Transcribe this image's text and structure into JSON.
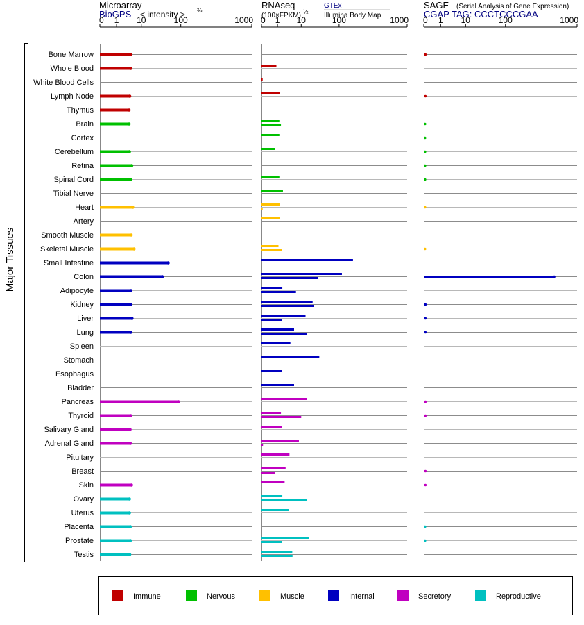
{
  "colors": {
    "Immune": "#c00000",
    "Nervous": "#00c000",
    "Muscle": "#ffc000",
    "Internal": "#0000c0",
    "Secretory": "#c000c0",
    "Reproductive": "#00c0c0"
  },
  "chart_data": {
    "type": "bar",
    "ylabel": "Major Tissues",
    "tissues": [
      {
        "name": "Bone Marrow",
        "system": "Immune"
      },
      {
        "name": "Whole Blood",
        "system": "Immune"
      },
      {
        "name": "White Blood Cells",
        "system": "Immune"
      },
      {
        "name": "Lymph Node",
        "system": "Immune"
      },
      {
        "name": "Thymus",
        "system": "Immune"
      },
      {
        "name": "Brain",
        "system": "Nervous"
      },
      {
        "name": "Cortex",
        "system": "Nervous"
      },
      {
        "name": "Cerebellum",
        "system": "Nervous"
      },
      {
        "name": "Retina",
        "system": "Nervous"
      },
      {
        "name": "Spinal Cord",
        "system": "Nervous"
      },
      {
        "name": "Tibial Nerve",
        "system": "Nervous"
      },
      {
        "name": "Heart",
        "system": "Muscle"
      },
      {
        "name": "Artery",
        "system": "Muscle"
      },
      {
        "name": "Smooth Muscle",
        "system": "Muscle"
      },
      {
        "name": "Skeletal Muscle",
        "system": "Muscle"
      },
      {
        "name": "Small Intestine",
        "system": "Internal"
      },
      {
        "name": "Colon",
        "system": "Internal"
      },
      {
        "name": "Adipocyte",
        "system": "Internal"
      },
      {
        "name": "Kidney",
        "system": "Internal"
      },
      {
        "name": "Liver",
        "system": "Internal"
      },
      {
        "name": "Lung",
        "system": "Internal"
      },
      {
        "name": "Spleen",
        "system": "Internal"
      },
      {
        "name": "Stomach",
        "system": "Internal"
      },
      {
        "name": "Esophagus",
        "system": "Internal"
      },
      {
        "name": "Bladder",
        "system": "Internal"
      },
      {
        "name": "Pancreas",
        "system": "Secretory"
      },
      {
        "name": "Thyroid",
        "system": "Secretory"
      },
      {
        "name": "Salivary Gland",
        "system": "Secretory"
      },
      {
        "name": "Adrenal Gland",
        "system": "Secretory"
      },
      {
        "name": "Pituitary",
        "system": "Secretory"
      },
      {
        "name": "Breast",
        "system": "Secretory"
      },
      {
        "name": "Skin",
        "system": "Secretory"
      },
      {
        "name": "Ovary",
        "system": "Reproductive"
      },
      {
        "name": "Uterus",
        "system": "Reproductive"
      },
      {
        "name": "Placenta",
        "system": "Reproductive"
      },
      {
        "name": "Prostate",
        "system": "Reproductive"
      },
      {
        "name": "Testis",
        "system": "Reproductive"
      }
    ],
    "panels": [
      {
        "id": "microarray",
        "title": "Microarray",
        "source": "BioGPS",
        "unit_label": "< intensity >",
        "exponent": "⅔",
        "tick_labels": [
          "0",
          "1",
          "10",
          "100",
          "1000"
        ],
        "tick_values": [
          0,
          1,
          10,
          100,
          1000
        ],
        "xlim": [
          0,
          1000
        ],
        "series": [
          {
            "name": "BioGPS",
            "values": [
              3.7,
              3.7,
              null,
              3.4,
              3.2,
              3.2,
              null,
              3.3,
              4.1,
              3.8,
              null,
              4.5,
              null,
              3.9,
              5.1,
              48,
              34,
              3.8,
              3.7,
              4.2,
              3.7,
              null,
              null,
              null,
              null,
              87,
              3.7,
              3.5,
              3.6,
              null,
              null,
              4.0,
              3.3,
              3.3,
              3.6,
              3.6,
              3.4
            ]
          }
        ]
      },
      {
        "id": "rnaseq",
        "title": "RNAseq",
        "unit_label": "(100×FPKM)",
        "exponent": "½",
        "sources": [
          "GTEx",
          "Illumina Body Map"
        ],
        "tick_labels": [
          "0",
          "1",
          "10",
          "100",
          "1000"
        ],
        "tick_values": [
          0,
          1,
          10,
          100,
          1000
        ],
        "xlim": [
          0,
          1000
        ],
        "series": [
          {
            "name": "GTEx",
            "values": [
              null,
              0.9,
              0.02,
              1.3,
              null,
              1.2,
              1.2,
              0.8,
              null,
              1.2,
              1.7,
              1.3,
              1.3,
              null,
              1.1,
              160,
              110,
              1.6,
              20,
              13,
              5,
              3.5,
              30,
              1.5,
              5,
              14,
              1.4,
              1.5,
              8,
              3.2,
              2.2,
              2.0,
              1.6,
              3.1,
              null,
              16,
              4.2
            ]
          },
          {
            "name": "Illumina Body Map",
            "values": [
              null,
              null,
              null,
              null,
              null,
              1.4,
              null,
              null,
              null,
              null,
              null,
              0.02,
              null,
              null,
              1.5,
              null,
              28,
              6,
              22,
              1.5,
              14,
              null,
              null,
              null,
              null,
              null,
              10,
              null,
              0.03,
              null,
              0.8,
              null,
              14,
              null,
              null,
              1.5,
              4.3
            ]
          }
        ]
      },
      {
        "id": "sage",
        "title": "SAGE",
        "subtitle": "(Serial Analysis of Gene Expression)",
        "source": "CGAP TAG: CCCTCCCGAA",
        "tick_labels": [
          "0",
          "1",
          "10",
          "100",
          "1000"
        ],
        "tick_values": [
          0,
          1,
          10,
          100,
          1000
        ],
        "xlim": [
          0,
          1000
        ],
        "series": [
          {
            "name": "SAGE",
            "values": [
              0.03,
              null,
              null,
              0.03,
              null,
              0.02,
              0.02,
              0.02,
              0.02,
              0.02,
              null,
              0.02,
              null,
              null,
              0.02,
              null,
              480,
              null,
              0.03,
              0.03,
              0.03,
              null,
              null,
              null,
              null,
              0.03,
              0.03,
              null,
              null,
              null,
              0.03,
              0.03,
              null,
              null,
              0.02,
              0.02,
              null
            ]
          }
        ]
      }
    ],
    "legend": {
      "placement": "bottom",
      "entries": [
        "Immune",
        "Nervous",
        "Muscle",
        "Internal",
        "Secretory",
        "Reproductive"
      ]
    }
  }
}
